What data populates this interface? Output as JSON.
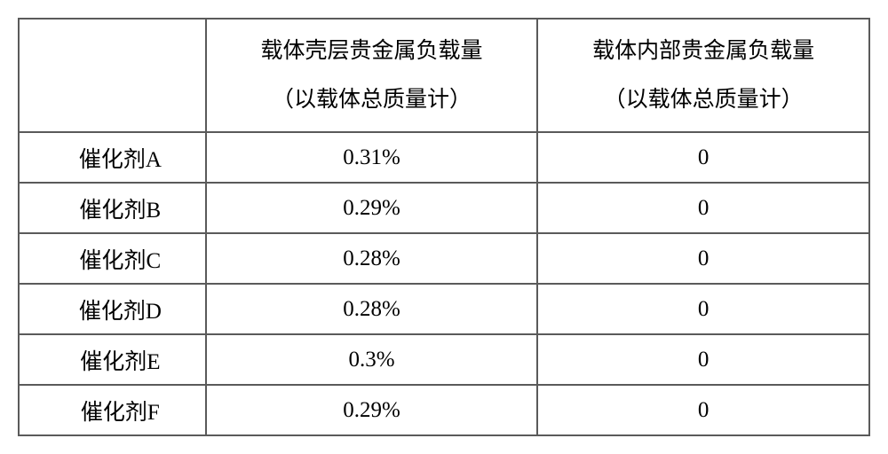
{
  "table": {
    "columns": [
      {
        "header_line1": "",
        "header_line2": ""
      },
      {
        "header_line1": "载体壳层贵金属负载量",
        "header_line2": "（以载体总质量计）"
      },
      {
        "header_line1": "载体内部贵金属负载量",
        "header_line2": "（以载体总质量计）"
      }
    ],
    "rows": [
      {
        "label": "催化剂A",
        "shell": "0.31%",
        "inner": "0"
      },
      {
        "label": "催化剂B",
        "shell": "0.29%",
        "inner": "0"
      },
      {
        "label": "催化剂C",
        "shell": "0.28%",
        "inner": "0"
      },
      {
        "label": "催化剂D",
        "shell": "0.28%",
        "inner": "0"
      },
      {
        "label": "催化剂E",
        "shell": "0.3%",
        "inner": "0"
      },
      {
        "label": "催化剂F",
        "shell": "0.29%",
        "inner": "0"
      }
    ],
    "border_color": "#5a5a5a",
    "background_color": "#ffffff",
    "font_size": 25,
    "text_color": "#000000"
  }
}
